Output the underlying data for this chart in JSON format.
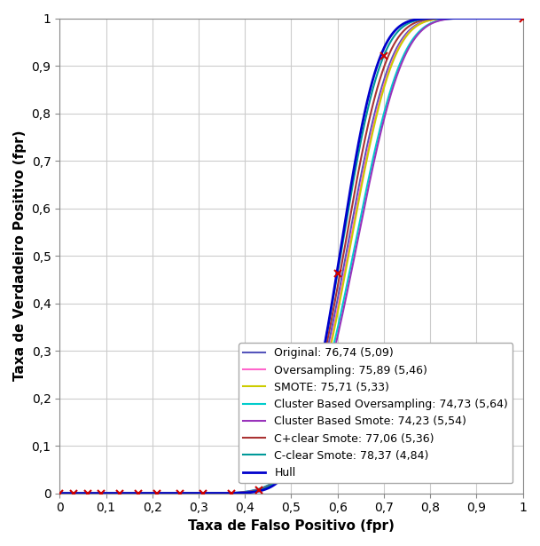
{
  "title": "",
  "xlabel": "Taxa de Falso Positivo (fpr)",
  "ylabel": "Taxa de Verdadeiro Positivo (fpr)",
  "xlim": [
    0,
    1
  ],
  "ylim": [
    0,
    1
  ],
  "tick_vals": [
    0,
    0.1,
    0.2,
    0.3,
    0.4,
    0.5,
    0.6,
    0.7,
    0.8,
    0.9,
    1
  ],
  "tick_labels": [
    "0",
    "0,1",
    "0,2",
    "0,3",
    "0,4",
    "0,5",
    "0,6",
    "0,7",
    "0,8",
    "0,9",
    "1"
  ],
  "series": [
    {
      "label": "Original: 76,74 (5,09)",
      "color": "#5555bb",
      "lw": 1.5,
      "marker": null,
      "mu": 0.3,
      "sigma": 0.2
    },
    {
      "label": "Oversampling: 75,89 (5,46)",
      "color": "#ff66cc",
      "lw": 1.5,
      "marker": null,
      "mu": 0.31,
      "sigma": 0.2
    },
    {
      "label": "SMOTE: 75,71 (5,33)",
      "color": "#cccc00",
      "lw": 1.5,
      "marker": null,
      "mu": 0.315,
      "sigma": 0.2
    },
    {
      "label": "Cluster Based Oversampling: 74,73 (5,64)",
      "color": "#00cccc",
      "lw": 1.5,
      "marker": null,
      "mu": 0.34,
      "sigma": 0.22
    },
    {
      "label": "Cluster Based Smote: 74,23 (5,54)",
      "color": "#9933bb",
      "lw": 1.5,
      "marker": null,
      "mu": 0.35,
      "sigma": 0.22
    },
    {
      "label": "C+clear Smote: 77,06 (5,36)",
      "color": "#aa3333",
      "lw": 1.5,
      "marker": null,
      "mu": 0.285,
      "sigma": 0.19
    },
    {
      "label": "C-clear Smote: 78,37 (4,84)",
      "color": "#009999",
      "lw": 1.5,
      "marker": "x",
      "markercolor": "#cc0000",
      "markersize": 6,
      "mu": 0.27,
      "sigma": 0.18
    },
    {
      "label": "Hull",
      "color": "#0000cc",
      "lw": 2.0,
      "marker": null,
      "mu": 0.265,
      "sigma": 0.17
    }
  ],
  "marker_fprs": [
    0.0,
    0.03,
    0.06,
    0.09,
    0.13,
    0.17,
    0.21,
    0.26,
    0.31,
    0.37,
    0.43,
    0.5,
    0.6,
    0.7,
    1.0
  ],
  "background_color": "#ffffff",
  "grid_color": "#cccccc",
  "legend_fontsize": 9,
  "axis_fontsize": 11
}
